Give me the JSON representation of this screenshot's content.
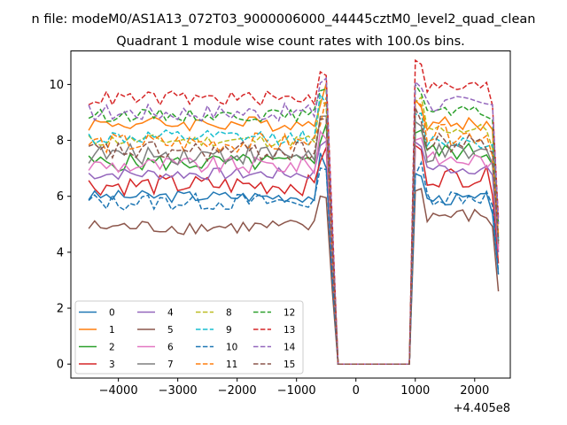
{
  "chart_data": {
    "type": "line",
    "suptitle": "n file: modeM0/AS1A13_072T03_9000006000_44445cztM0_level2_quad_clean",
    "title": "Quadrant 1 module wise count rates with 100.0s bins.",
    "xlabel": "",
    "ylabel": "",
    "x_offset_label": "+4.405e8",
    "xlim": [
      -4800,
      2600
    ],
    "ylim": [
      -0.5,
      11.2
    ],
    "xticks": [
      -4000,
      -3000,
      -2000,
      -1000,
      0,
      1000,
      2000
    ],
    "xtick_labels": [
      "−4000",
      "−3000",
      "−2000",
      "−1000",
      "0",
      "1000",
      "2000"
    ],
    "yticks": [
      0,
      2,
      4,
      6,
      8,
      10
    ],
    "ytick_labels": [
      "0",
      "2",
      "4",
      "6",
      "8",
      "10"
    ],
    "grid": false,
    "legend_position": "lower-left",
    "legend_columns": 4,
    "x_start": -4500,
    "x_step": 100,
    "gap_start_index": 42,
    "gap_end_index": 54,
    "series": [
      {
        "name": "0",
        "color": "#1f77b4",
        "dash": "solid",
        "base": 6.0,
        "post": 5.9,
        "last": 3.2
      },
      {
        "name": "1",
        "color": "#ff7f0e",
        "dash": "solid",
        "base": 8.6,
        "post": 8.6,
        "last": 4.2
      },
      {
        "name": "2",
        "color": "#2ca02c",
        "dash": "solid",
        "base": 7.2,
        "post": 7.6,
        "last": 4.4
      },
      {
        "name": "3",
        "color": "#d62728",
        "dash": "solid",
        "base": 6.4,
        "post": 6.7,
        "last": 3.6
      },
      {
        "name": "4",
        "color": "#9467bd",
        "dash": "solid",
        "base": 6.8,
        "post": 7.0,
        "last": 4.0
      },
      {
        "name": "5",
        "color": "#8c564b",
        "dash": "solid",
        "base": 4.9,
        "post": 5.3,
        "last": 2.6
      },
      {
        "name": "6",
        "color": "#e377c2",
        "dash": "solid",
        "base": 7.1,
        "post": 7.3,
        "last": 4.1
      },
      {
        "name": "7",
        "color": "#7f7f7f",
        "dash": "solid",
        "base": 7.5,
        "post": 7.5,
        "last": 4.3
      },
      {
        "name": "8",
        "color": "#bcbd22",
        "dash": "dashed",
        "base": 8.0,
        "post": 8.4,
        "last": 4.6
      },
      {
        "name": "9",
        "color": "#17becf",
        "dash": "dashed",
        "base": 8.1,
        "post": 8.0,
        "last": 4.5
      },
      {
        "name": "10",
        "color": "#1f77b4",
        "dash": "dashed",
        "base": 5.8,
        "post": 6.0,
        "last": 3.3
      },
      {
        "name": "11",
        "color": "#ff7f0e",
        "dash": "dashed",
        "base": 7.9,
        "post": 8.2,
        "last": 4.6
      },
      {
        "name": "12",
        "color": "#2ca02c",
        "dash": "dashed",
        "base": 8.9,
        "post": 9.0,
        "last": 5.0
      },
      {
        "name": "13",
        "color": "#d62728",
        "dash": "dashed",
        "base": 9.5,
        "post": 9.9,
        "last": 5.2
      },
      {
        "name": "14",
        "color": "#9467bd",
        "dash": "dashed",
        "base": 9.0,
        "post": 9.3,
        "last": 5.0
      },
      {
        "name": "15",
        "color": "#8c564b",
        "dash": "dashed",
        "base": 7.6,
        "post": 7.9,
        "last": 4.4
      }
    ]
  }
}
